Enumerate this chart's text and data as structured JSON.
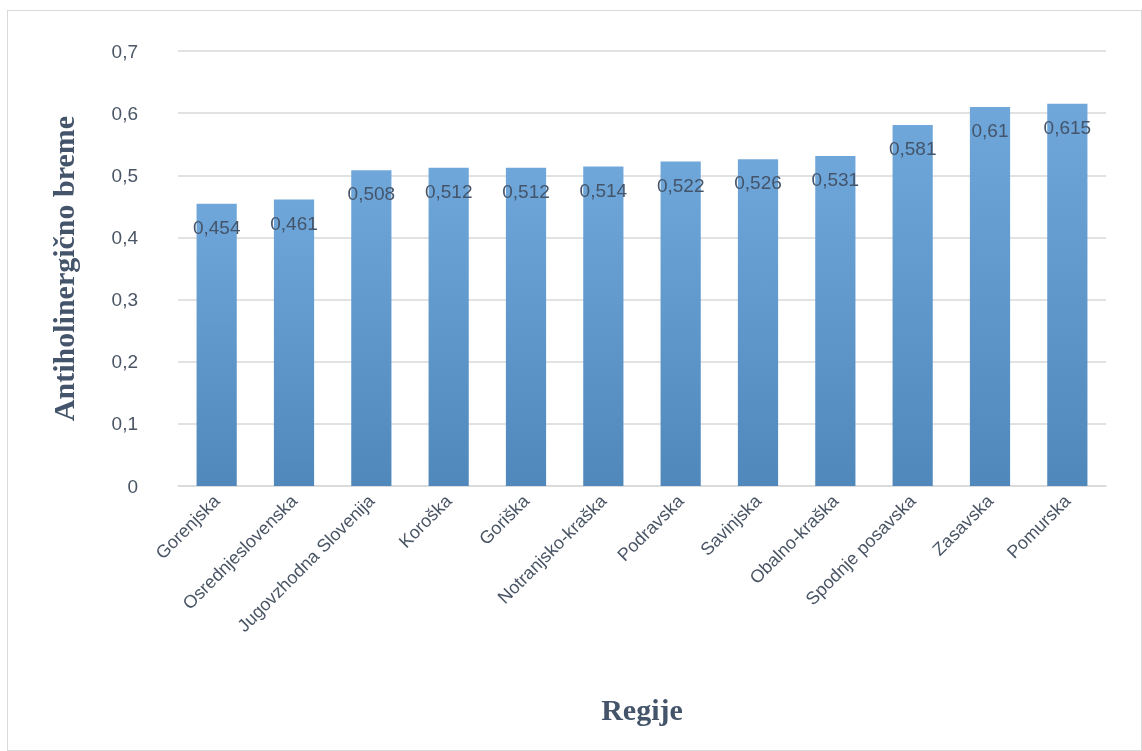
{
  "chart_data": {
    "type": "bar",
    "xlabel": "Regije",
    "ylabel": "Antiholinergično breme",
    "categories": [
      "Gorenjska",
      "Osrednjeslovenska",
      "Jugovzhodna Slovenija",
      "Koroška",
      "Goriška",
      "Notranjsko-kraška",
      "Podravska",
      "Savinjska",
      "Obalno-kraška",
      "Spodnje posavska",
      "Zasavska",
      "Pomurska"
    ],
    "values": [
      0.454,
      0.461,
      0.508,
      0.512,
      0.512,
      0.514,
      0.522,
      0.526,
      0.531,
      0.581,
      0.61,
      0.615
    ],
    "value_labels": [
      "0,454",
      "0,461",
      "0,508",
      "0,512",
      "0,512",
      "0,514",
      "0,522",
      "0,526",
      "0,531",
      "0,581",
      "0,61",
      "0,615"
    ],
    "color": "#5b9bd5",
    "ylim": [
      0,
      0.7
    ],
    "yticks": [
      0,
      {
        "value": 0.1,
        "label": "0,1"
      },
      {
        "value": 0.2,
        "label": "0,2"
      },
      {
        "value": 0.3,
        "label": "0,3"
      },
      {
        "value": 0.4,
        "label": "0,4"
      },
      {
        "value": 0.5,
        "label": "0,5"
      },
      {
        "value": 0.6,
        "label": "0,6"
      },
      {
        "value": 0.7,
        "label": "0,7"
      }
    ],
    "grid": "y"
  }
}
